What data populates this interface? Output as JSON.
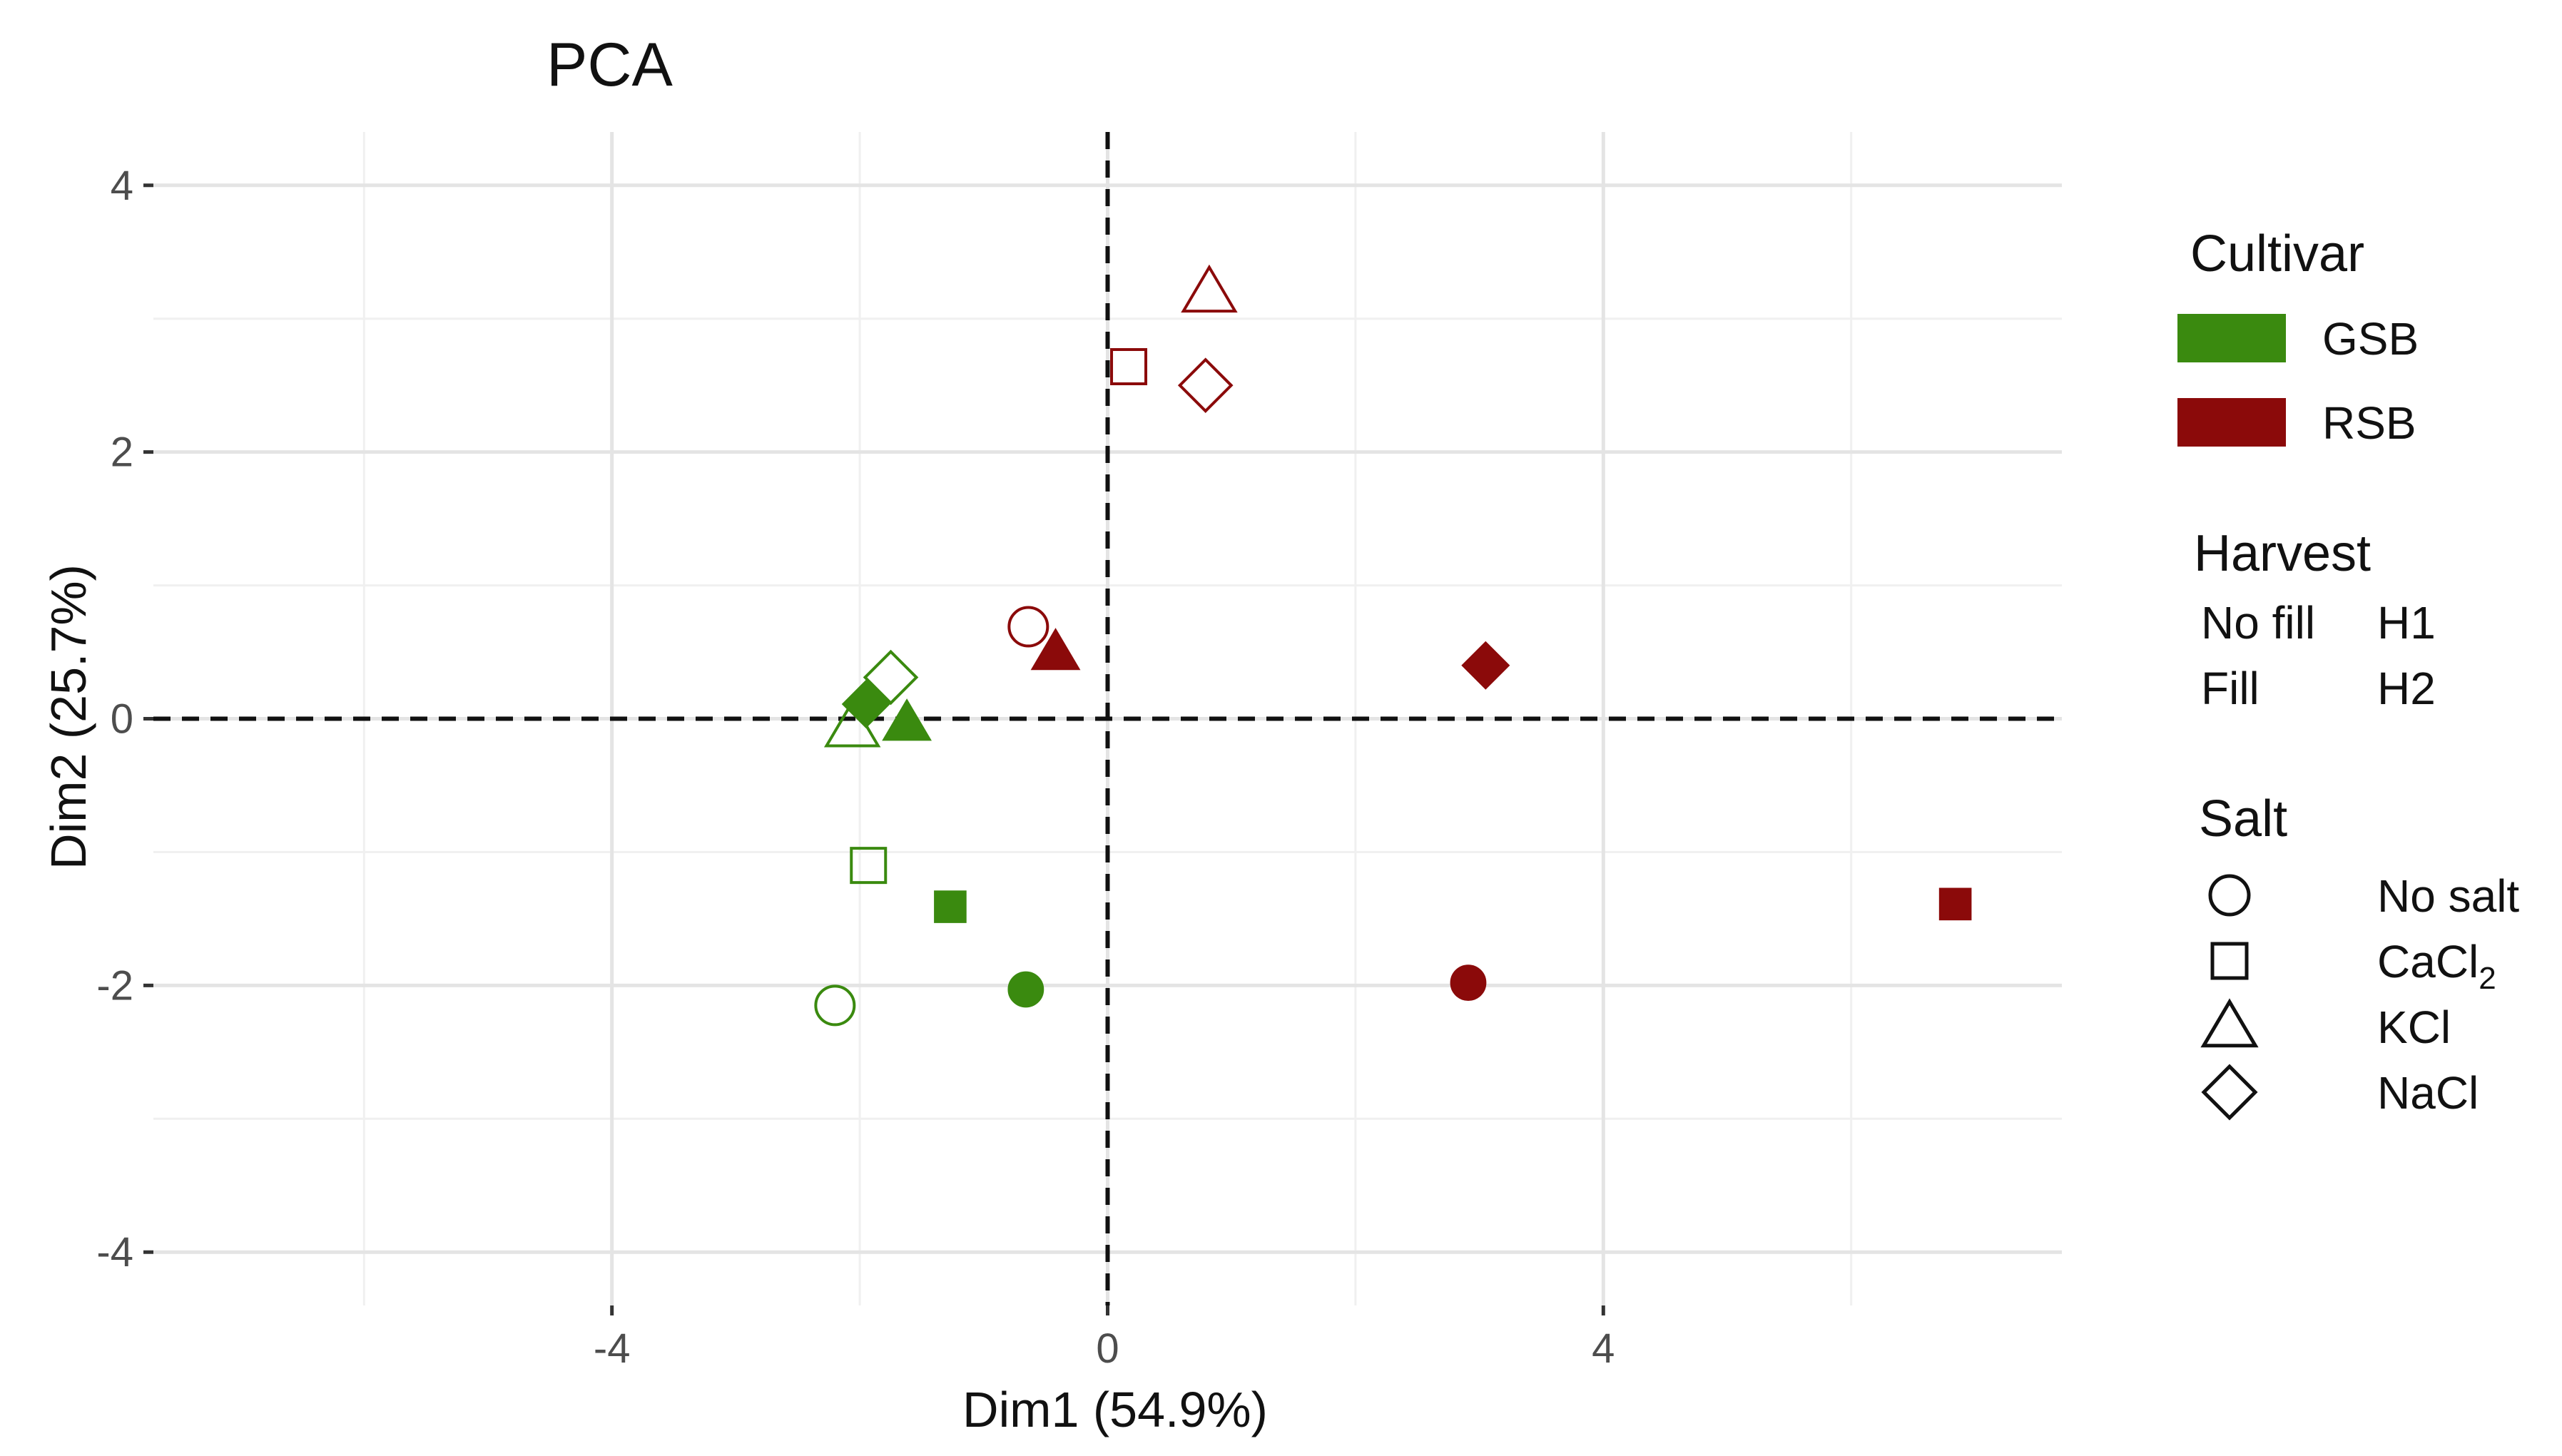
{
  "chart_data": {
    "type": "scatter",
    "title": "PCA",
    "xlabel": "Dim1 (54.9%)",
    "ylabel": "Dim2 (25.7%)",
    "xlim": [
      -7.7,
      7.7
    ],
    "ylim": [
      -4.4,
      4.4
    ],
    "xticks": [
      -4,
      0,
      4
    ],
    "xtick_labels": [
      "-4",
      "0",
      "4"
    ],
    "yticks": [
      -4,
      -2,
      0,
      2,
      4
    ],
    "ytick_labels": [
      "-4",
      "-2",
      "0",
      "2",
      "4"
    ],
    "grid": true,
    "reference_lines": {
      "x": 0,
      "y": 0,
      "style": "dashed"
    },
    "colors": {
      "GSB": "#3a8a0f",
      "RSB": "#8b0a0a"
    },
    "legend": {
      "placement": "right",
      "cultivar_title": "Cultivar",
      "cultivar_items": [
        {
          "label": "GSB",
          "color": "#3a8a0f"
        },
        {
          "label": "RSB",
          "color": "#8b0a0a"
        }
      ],
      "harvest_title": "Harvest",
      "harvest_items": [
        {
          "fill_label": "No fill",
          "harvest_label": "H1"
        },
        {
          "fill_label": "Fill",
          "harvest_label": "H2"
        }
      ],
      "salt_title": "Salt",
      "salt_items": [
        {
          "label": "No salt",
          "shape": "circle"
        },
        {
          "label": "CaCl",
          "subscript": "2",
          "shape": "square"
        },
        {
          "label": "KCl",
          "shape": "triangle"
        },
        {
          "label": "NaCl",
          "shape": "diamond"
        }
      ]
    },
    "points": [
      {
        "cultivar": "GSB",
        "harvest": "H1",
        "salt": "No salt",
        "shape": "circle",
        "filled": false,
        "x": -2.2,
        "y": -2.15
      },
      {
        "cultivar": "GSB",
        "harvest": "H1",
        "salt": "CaCl2",
        "shape": "square",
        "filled": false,
        "x": -1.93,
        "y": -1.1
      },
      {
        "cultivar": "GSB",
        "harvest": "H1",
        "salt": "KCl",
        "shape": "triangle",
        "filled": false,
        "x": -2.06,
        "y": -0.06
      },
      {
        "cultivar": "GSB",
        "harvest": "H1",
        "salt": "NaCl",
        "shape": "diamond",
        "filled": false,
        "x": -1.75,
        "y": 0.31
      },
      {
        "cultivar": "GSB",
        "harvest": "H2",
        "salt": "No salt",
        "shape": "circle",
        "filled": true,
        "x": -0.66,
        "y": -2.03
      },
      {
        "cultivar": "GSB",
        "harvest": "H2",
        "salt": "CaCl2",
        "shape": "square",
        "filled": true,
        "x": -1.27,
        "y": -1.41
      },
      {
        "cultivar": "GSB",
        "harvest": "H2",
        "salt": "KCl",
        "shape": "triangle",
        "filled": true,
        "x": -1.62,
        "y": -0.03
      },
      {
        "cultivar": "GSB",
        "harvest": "H2",
        "salt": "NaCl",
        "shape": "diamond",
        "filled": true,
        "x": -1.95,
        "y": 0.11
      },
      {
        "cultivar": "RSB",
        "harvest": "H1",
        "salt": "No salt",
        "shape": "circle",
        "filled": false,
        "x": -0.64,
        "y": 0.69
      },
      {
        "cultivar": "RSB",
        "harvest": "H1",
        "salt": "CaCl2",
        "shape": "square",
        "filled": false,
        "x": 0.17,
        "y": 2.64
      },
      {
        "cultivar": "RSB",
        "harvest": "H1",
        "salt": "KCl",
        "shape": "triangle",
        "filled": false,
        "x": 0.82,
        "y": 3.2
      },
      {
        "cultivar": "RSB",
        "harvest": "H1",
        "salt": "NaCl",
        "shape": "diamond",
        "filled": false,
        "x": 0.79,
        "y": 2.5
      },
      {
        "cultivar": "RSB",
        "harvest": "H2",
        "salt": "No salt",
        "shape": "circle",
        "filled": true,
        "x": 2.91,
        "y": -1.98
      },
      {
        "cultivar": "RSB",
        "harvest": "H2",
        "salt": "CaCl2",
        "shape": "square",
        "filled": true,
        "x": 6.84,
        "y": -1.39
      },
      {
        "cultivar": "RSB",
        "harvest": "H2",
        "salt": "KCl",
        "shape": "triangle",
        "filled": true,
        "x": -0.42,
        "y": 0.5
      },
      {
        "cultivar": "RSB",
        "harvest": "H2",
        "salt": "NaCl",
        "shape": "diamond",
        "filled": true,
        "x": 3.05,
        "y": 0.4
      }
    ]
  }
}
